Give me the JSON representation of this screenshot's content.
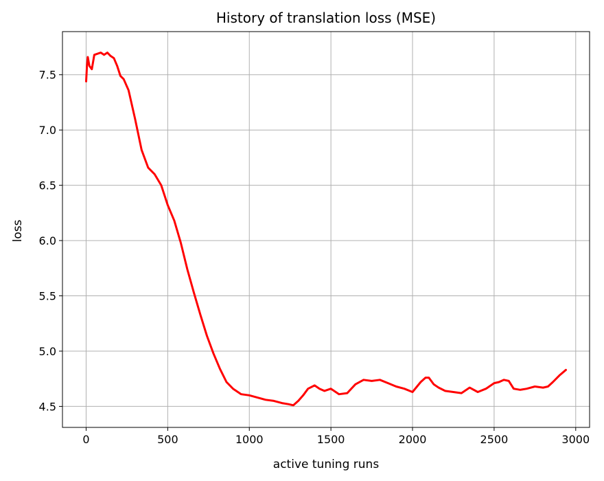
{
  "chart_data": {
    "type": "line",
    "title": "History of translation loss (MSE)",
    "xlabel": "active tuning runs",
    "ylabel": "loss",
    "xlim": [
      -145,
      3085
    ],
    "ylim": [
      4.31,
      7.89
    ],
    "xticks": [
      0,
      500,
      1000,
      1500,
      2000,
      2500,
      3000
    ],
    "yticks": [
      4.5,
      5.0,
      5.5,
      6.0,
      6.5,
      7.0,
      7.5
    ],
    "xtick_labels": [
      "0",
      "500",
      "1000",
      "1500",
      "2000",
      "2500",
      "3000"
    ],
    "ytick_labels": [
      "4.5",
      "5.0",
      "5.5",
      "6.0",
      "6.5",
      "7.0",
      "7.5"
    ],
    "grid": true,
    "series": [
      {
        "color": "#ff0000",
        "x": [
          0,
          5,
          10,
          20,
          35,
          50,
          70,
          90,
          110,
          130,
          150,
          170,
          190,
          210,
          230,
          260,
          300,
          340,
          380,
          420,
          460,
          500,
          540,
          580,
          620,
          660,
          700,
          740,
          780,
          820,
          860,
          900,
          950,
          1000,
          1050,
          1100,
          1150,
          1200,
          1240,
          1270,
          1300,
          1330,
          1360,
          1400,
          1430,
          1460,
          1500,
          1550,
          1600,
          1650,
          1700,
          1750,
          1800,
          1850,
          1900,
          1950,
          2000,
          2050,
          2080,
          2100,
          2130,
          2160,
          2200,
          2250,
          2300,
          2350,
          2400,
          2450,
          2500,
          2530,
          2560,
          2590,
          2620,
          2660,
          2700,
          2750,
          2800,
          2830,
          2860,
          2900,
          2940
        ],
        "values": [
          7.44,
          7.58,
          7.66,
          7.58,
          7.55,
          7.68,
          7.69,
          7.7,
          7.68,
          7.7,
          7.67,
          7.65,
          7.58,
          7.49,
          7.46,
          7.36,
          7.1,
          6.82,
          6.66,
          6.6,
          6.5,
          6.32,
          6.18,
          5.98,
          5.74,
          5.53,
          5.33,
          5.14,
          4.98,
          4.84,
          4.72,
          4.66,
          4.61,
          4.6,
          4.58,
          4.56,
          4.55,
          4.53,
          4.52,
          4.51,
          4.55,
          4.6,
          4.66,
          4.69,
          4.66,
          4.64,
          4.66,
          4.61,
          4.62,
          4.7,
          4.74,
          4.73,
          4.74,
          4.71,
          4.68,
          4.66,
          4.63,
          4.72,
          4.76,
          4.76,
          4.7,
          4.67,
          4.64,
          4.63,
          4.62,
          4.67,
          4.63,
          4.66,
          4.71,
          4.72,
          4.74,
          4.73,
          4.66,
          4.65,
          4.66,
          4.68,
          4.67,
          4.68,
          4.72,
          4.78,
          4.83
        ]
      }
    ]
  }
}
